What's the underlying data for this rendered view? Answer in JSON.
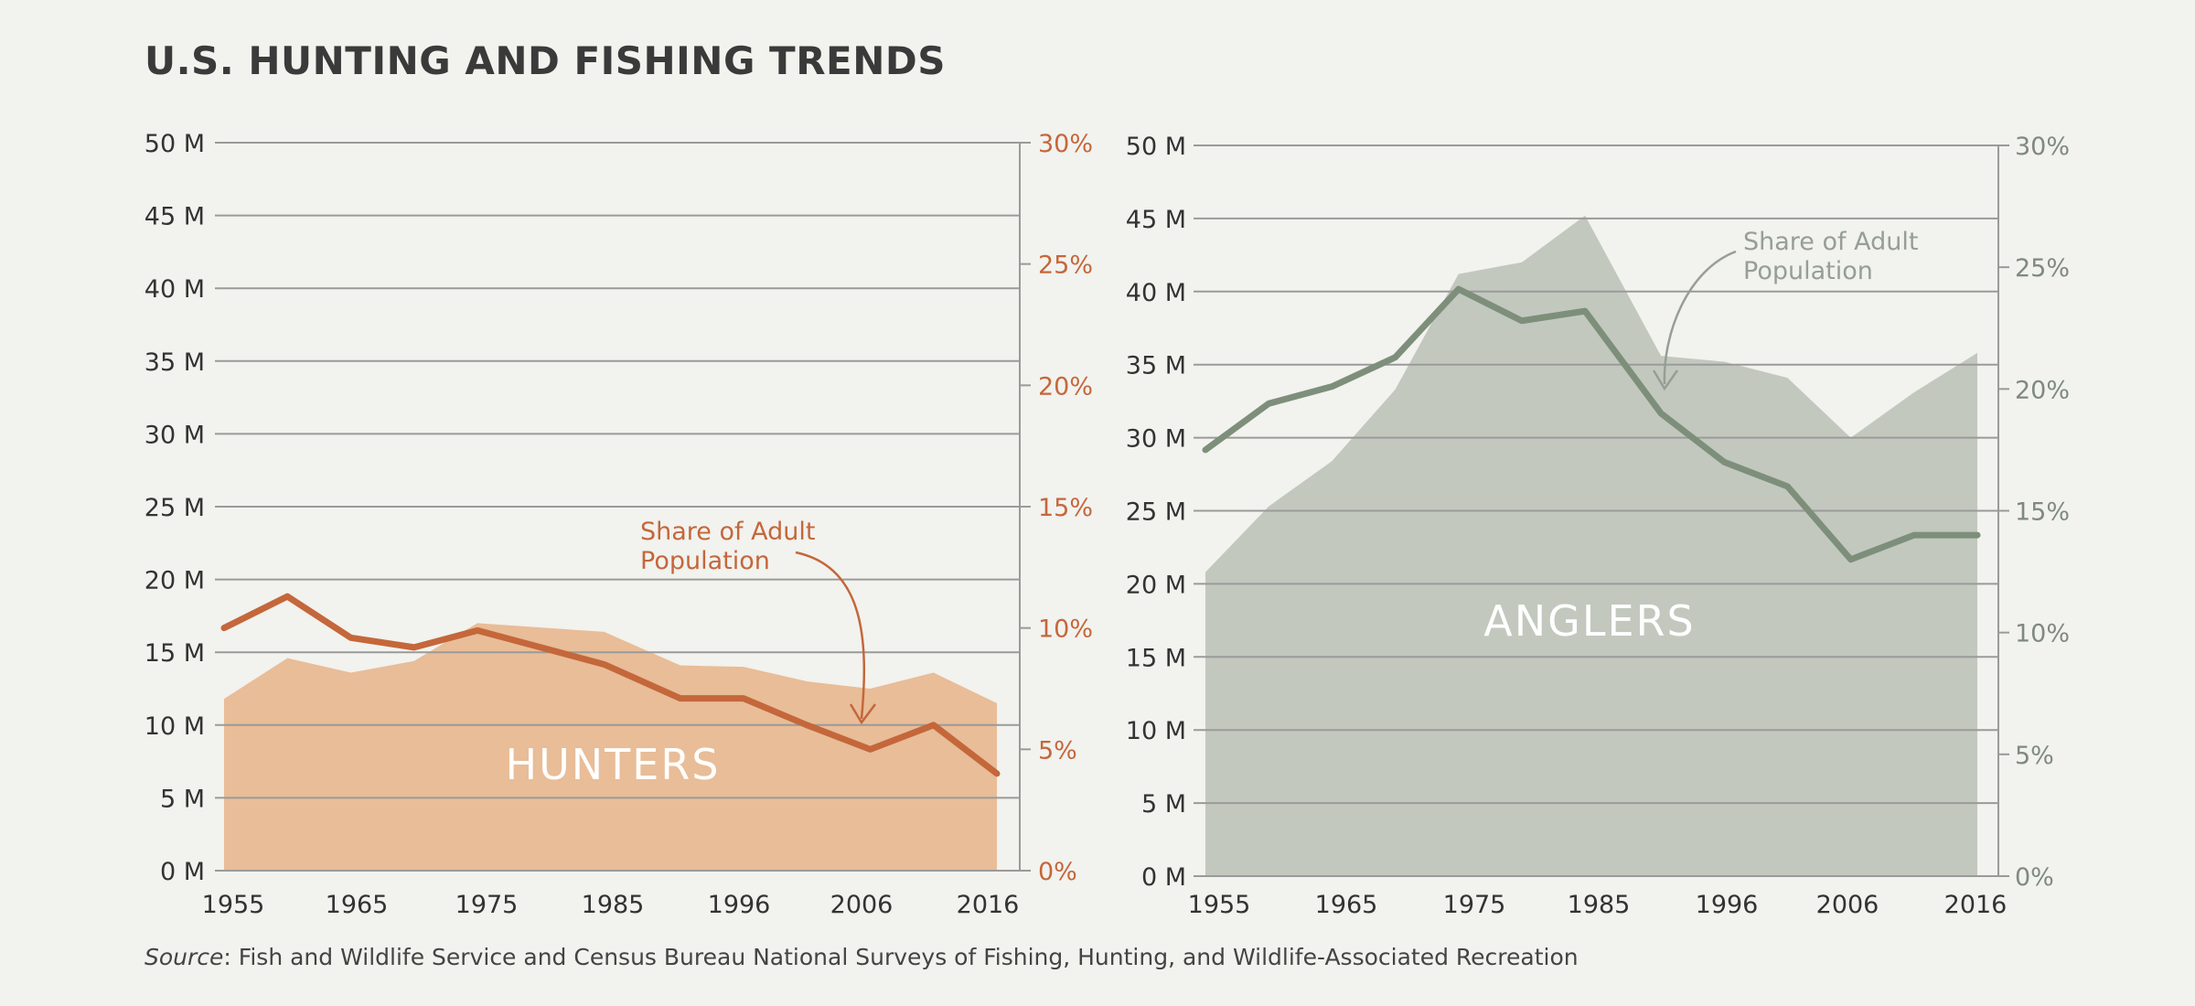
{
  "title": "U.S. HUNTING AND FISHING TRENDS",
  "source": {
    "label": "Source",
    "text": ": Fish and Wildlife Service and Census Bureau National Surveys of Fishing, Hunting, and Wildlife-Associated Recreation"
  },
  "colors": {
    "background": "#f2f2ee",
    "hunters_area": "#e8bd98",
    "hunters_line": "#c4673b",
    "anglers_area": "#c2c8be",
    "anglers_line": "#7d8f7b",
    "anglers_annotation": "#969e95",
    "grid": "#9a9a9a",
    "text": "#333333"
  },
  "chart_data": [
    {
      "type": "area",
      "name": "hunters",
      "area_label": "HUNTERS",
      "annotation": {
        "text": [
          "Share of Adult",
          "Population"
        ]
      },
      "x_tick_labels": [
        "1955",
        "1965",
        "1975",
        "1985",
        "1996",
        "2006",
        "2016"
      ],
      "y_left_ticks": [
        "0 M",
        "5 M",
        "10 M",
        "15 M",
        "20 M",
        "25 M",
        "30 M",
        "35 M",
        "40 M",
        "45 M",
        "50 M"
      ],
      "y_right_ticks": [
        "0%",
        "5%",
        "10%",
        "15%",
        "20%",
        "25%",
        "30%"
      ],
      "ylim_left": [
        0,
        50
      ],
      "ylim_right": [
        0,
        30
      ],
      "grid": true,
      "x": [
        1955,
        1960,
        1965,
        1970,
        1975,
        1980,
        1985,
        1991,
        1996,
        2001,
        2006,
        2011,
        2016
      ],
      "series": [
        {
          "axis": "left",
          "values": [
            11.8,
            14.6,
            13.6,
            14.4,
            17.0,
            16.7,
            16.4,
            14.1,
            14.0,
            13.0,
            12.5,
            13.6,
            11.5
          ]
        },
        {
          "axis": "right",
          "values": [
            10.0,
            11.3,
            9.6,
            9.2,
            9.9,
            9.2,
            8.5,
            7.1,
            7.1,
            6.0,
            5.0,
            6.0,
            4.0
          ]
        }
      ]
    },
    {
      "type": "area",
      "name": "anglers",
      "area_label": "ANGLERS",
      "annotation": {
        "text": [
          "Share of Adult",
          "Population"
        ]
      },
      "x_tick_labels": [
        "1955",
        "1965",
        "1975",
        "1985",
        "1996",
        "2006",
        "2016"
      ],
      "y_left_ticks": [
        "0 M",
        "5 M",
        "10 M",
        "15 M",
        "20 M",
        "25 M",
        "30 M",
        "35 M",
        "40 M",
        "45 M",
        "50 M"
      ],
      "y_right_ticks": [
        "0%",
        "5%",
        "10%",
        "15%",
        "20%",
        "25%",
        "30%"
      ],
      "ylim_left": [
        0,
        50
      ],
      "ylim_right": [
        0,
        30
      ],
      "grid": true,
      "x": [
        1955,
        1960,
        1965,
        1970,
        1975,
        1980,
        1985,
        1991,
        1996,
        2001,
        2006,
        2011,
        2016
      ],
      "series": [
        {
          "axis": "left",
          "values": [
            20.8,
            25.3,
            28.4,
            33.3,
            41.2,
            42.0,
            45.2,
            35.6,
            35.2,
            34.1,
            30.0,
            33.1,
            35.8
          ]
        },
        {
          "axis": "right",
          "values": [
            17.5,
            19.4,
            20.1,
            21.3,
            24.1,
            22.8,
            23.2,
            19.0,
            17.0,
            16.0,
            13.0,
            14.0,
            14.0
          ]
        }
      ]
    }
  ]
}
